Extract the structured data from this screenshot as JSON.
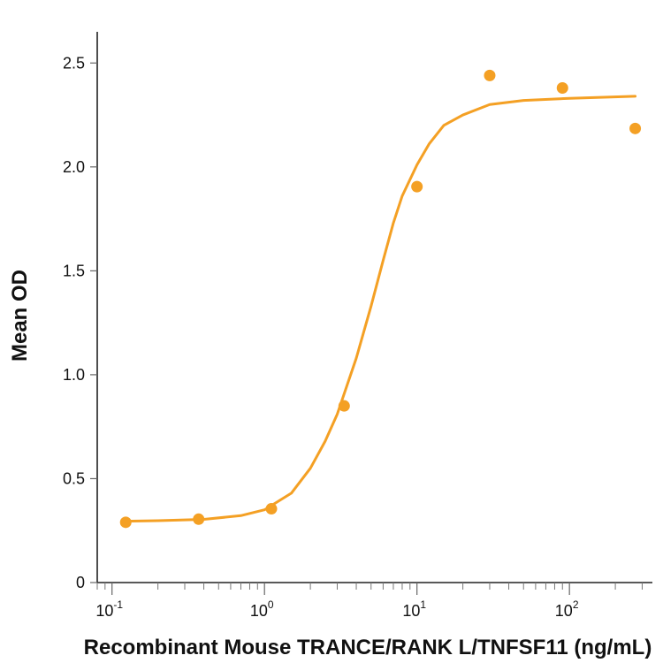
{
  "chart_data": {
    "type": "scatter",
    "title": "",
    "xlabel": "Recombinant Mouse TRANCE/RANK L/TNFSF11 (ng/mL)",
    "ylabel": "Mean OD",
    "x_scale": "log",
    "xlim": [
      0.08,
      350
    ],
    "ylim": [
      0,
      2.65
    ],
    "grid": false,
    "legend": "none",
    "colors": {
      "series": "#F4A024"
    },
    "x_ticks": [
      {
        "value": 0.1,
        "base": "10",
        "exp": "-1"
      },
      {
        "value": 1,
        "base": "10",
        "exp": "0"
      },
      {
        "value": 10,
        "base": "10",
        "exp": "1"
      },
      {
        "value": 100,
        "base": "10",
        "exp": "2"
      }
    ],
    "y_ticks": [
      {
        "value": 0,
        "label": "0"
      },
      {
        "value": 0.5,
        "label": "0.5"
      },
      {
        "value": 1.0,
        "label": "1.0"
      },
      {
        "value": 1.5,
        "label": "1.5"
      },
      {
        "value": 2.0,
        "label": "2.0"
      },
      {
        "value": 2.5,
        "label": "2.5"
      }
    ],
    "series": [
      {
        "x": [
          0.123,
          0.37,
          1.11,
          3.33,
          10.0,
          30.0,
          90.0,
          270.0
        ],
        "y": [
          0.29,
          0.305,
          0.355,
          0.85,
          1.905,
          2.44,
          2.38,
          2.185
        ]
      }
    ],
    "fit_curve": {
      "x": [
        0.123,
        0.2,
        0.4,
        0.7,
        1.0,
        1.5,
        2.0,
        2.5,
        3.0,
        4.0,
        5.0,
        6.0,
        7.0,
        8.0,
        10.0,
        12.0,
        15.0,
        20.0,
        30.0,
        50.0,
        100.0,
        270.0
      ],
      "y": [
        0.295,
        0.298,
        0.304,
        0.322,
        0.35,
        0.43,
        0.55,
        0.68,
        0.81,
        1.08,
        1.33,
        1.55,
        1.73,
        1.86,
        2.01,
        2.11,
        2.2,
        2.25,
        2.3,
        2.32,
        2.33,
        2.34
      ]
    }
  }
}
